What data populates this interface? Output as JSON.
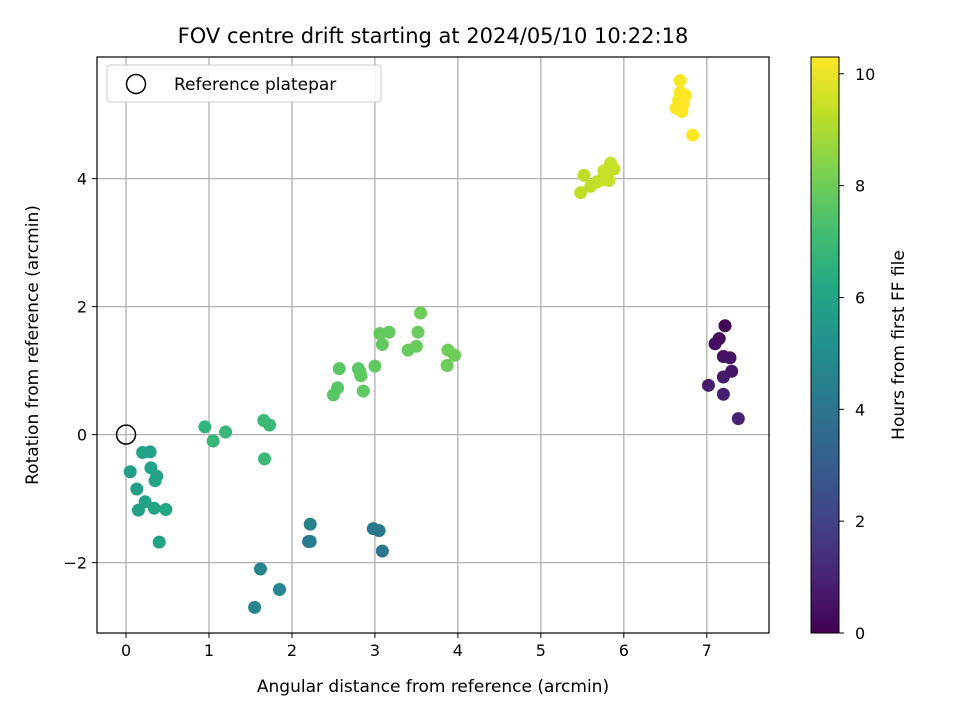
{
  "chart_data": {
    "type": "scatter",
    "title": "FOV centre drift starting at 2024/05/10 10:22:18",
    "xlabel": "Angular distance from reference (arcmin)",
    "ylabel": "Rotation from reference (arcmin)",
    "xlim": [
      -0.35,
      7.75
    ],
    "ylim": [
      -3.1,
      5.9
    ],
    "xticks": [
      0,
      1,
      2,
      3,
      4,
      5,
      6,
      7
    ],
    "yticks": [
      -2,
      0,
      2,
      4
    ],
    "ytick_labels": [
      "−2",
      "0",
      "2",
      "4"
    ],
    "grid": true,
    "legend": {
      "position": "top-left",
      "entries": [
        {
          "label": "Reference platepar",
          "marker": "open-circle",
          "color": "#000000"
        }
      ]
    },
    "reference_point": {
      "x": 0,
      "y": 0
    },
    "colorbar": {
      "label": "Hours from first FF file",
      "colormap": "viridis",
      "range": [
        0,
        10.3
      ],
      "ticks": [
        0,
        2,
        4,
        6,
        8,
        10
      ]
    },
    "points": [
      {
        "x": 7.22,
        "y": 1.7,
        "h": 0.1
      },
      {
        "x": 7.15,
        "y": 1.5,
        "h": 0.2
      },
      {
        "x": 7.1,
        "y": 1.42,
        "h": 0.3
      },
      {
        "x": 7.2,
        "y": 1.22,
        "h": 0.4
      },
      {
        "x": 7.28,
        "y": 1.2,
        "h": 0.5
      },
      {
        "x": 7.3,
        "y": 0.99,
        "h": 0.6
      },
      {
        "x": 7.2,
        "y": 0.9,
        "h": 0.7
      },
      {
        "x": 7.02,
        "y": 0.77,
        "h": 0.8
      },
      {
        "x": 7.2,
        "y": 0.63,
        "h": 0.9
      },
      {
        "x": 7.38,
        "y": 0.25,
        "h": 1.0
      },
      {
        "x": 1.55,
        "y": -2.7,
        "h": 4.6
      },
      {
        "x": 1.62,
        "y": -2.1,
        "h": 4.6
      },
      {
        "x": 1.85,
        "y": -2.42,
        "h": 4.7
      },
      {
        "x": 2.22,
        "y": -1.67,
        "h": 4.4
      },
      {
        "x": 2.2,
        "y": -1.67,
        "h": 4.3
      },
      {
        "x": 2.22,
        "y": -1.4,
        "h": 4.5
      },
      {
        "x": 2.98,
        "y": -1.47,
        "h": 4.2
      },
      {
        "x": 3.05,
        "y": -1.5,
        "h": 4.1
      },
      {
        "x": 3.09,
        "y": -1.82,
        "h": 4.0
      },
      {
        "x": 0.05,
        "y": -0.58,
        "h": 5.8
      },
      {
        "x": 0.13,
        "y": -0.85,
        "h": 5.8
      },
      {
        "x": 0.15,
        "y": -1.18,
        "h": 5.8
      },
      {
        "x": 0.2,
        "y": -0.28,
        "h": 5.9
      },
      {
        "x": 0.23,
        "y": -1.05,
        "h": 5.9
      },
      {
        "x": 0.29,
        "y": -0.27,
        "h": 5.9
      },
      {
        "x": 0.3,
        "y": -0.52,
        "h": 5.9
      },
      {
        "x": 0.35,
        "y": -0.72,
        "h": 6.0
      },
      {
        "x": 0.37,
        "y": -0.65,
        "h": 6.0
      },
      {
        "x": 0.34,
        "y": -1.15,
        "h": 6.0
      },
      {
        "x": 0.4,
        "y": -1.68,
        "h": 6.0
      },
      {
        "x": 0.48,
        "y": -1.17,
        "h": 6.1
      },
      {
        "x": 0.95,
        "y": 0.12,
        "h": 6.7
      },
      {
        "x": 1.05,
        "y": -0.1,
        "h": 6.8
      },
      {
        "x": 1.2,
        "y": 0.04,
        "h": 6.8
      },
      {
        "x": 1.66,
        "y": 0.22,
        "h": 6.9
      },
      {
        "x": 1.73,
        "y": 0.15,
        "h": 6.9
      },
      {
        "x": 1.67,
        "y": -0.38,
        "h": 6.9
      },
      {
        "x": 2.5,
        "y": 0.62,
        "h": 7.6
      },
      {
        "x": 2.55,
        "y": 0.73,
        "h": 7.6
      },
      {
        "x": 2.57,
        "y": 1.03,
        "h": 7.6
      },
      {
        "x": 2.8,
        "y": 1.03,
        "h": 7.6
      },
      {
        "x": 2.82,
        "y": 0.98,
        "h": 7.6
      },
      {
        "x": 2.83,
        "y": 0.92,
        "h": 7.7
      },
      {
        "x": 2.86,
        "y": 0.68,
        "h": 7.7
      },
      {
        "x": 3.0,
        "y": 1.07,
        "h": 7.7
      },
      {
        "x": 3.06,
        "y": 1.58,
        "h": 7.8
      },
      {
        "x": 3.09,
        "y": 1.41,
        "h": 7.8
      },
      {
        "x": 3.17,
        "y": 1.6,
        "h": 7.8
      },
      {
        "x": 3.4,
        "y": 1.32,
        "h": 7.9
      },
      {
        "x": 3.5,
        "y": 1.38,
        "h": 7.9
      },
      {
        "x": 3.52,
        "y": 1.6,
        "h": 7.9
      },
      {
        "x": 3.55,
        "y": 1.9,
        "h": 8.0
      },
      {
        "x": 3.87,
        "y": 1.08,
        "h": 8.0
      },
      {
        "x": 3.88,
        "y": 1.32,
        "h": 8.0
      },
      {
        "x": 3.96,
        "y": 1.24,
        "h": 8.0
      },
      {
        "x": 5.48,
        "y": 3.78,
        "h": 9.3
      },
      {
        "x": 5.52,
        "y": 4.05,
        "h": 9.3
      },
      {
        "x": 5.6,
        "y": 3.88,
        "h": 9.3
      },
      {
        "x": 5.68,
        "y": 3.95,
        "h": 9.3
      },
      {
        "x": 5.73,
        "y": 3.98,
        "h": 9.4
      },
      {
        "x": 5.76,
        "y": 4.12,
        "h": 9.4
      },
      {
        "x": 5.82,
        "y": 3.97,
        "h": 9.4
      },
      {
        "x": 5.84,
        "y": 4.24,
        "h": 9.4
      },
      {
        "x": 5.88,
        "y": 4.15,
        "h": 9.4
      },
      {
        "x": 6.63,
        "y": 5.1,
        "h": 10.2
      },
      {
        "x": 6.66,
        "y": 5.22,
        "h": 10.2
      },
      {
        "x": 6.68,
        "y": 5.53,
        "h": 10.2
      },
      {
        "x": 6.68,
        "y": 5.35,
        "h": 10.2
      },
      {
        "x": 6.7,
        "y": 5.05,
        "h": 10.3
      },
      {
        "x": 6.72,
        "y": 5.17,
        "h": 10.3
      },
      {
        "x": 6.74,
        "y": 5.3,
        "h": 10.3
      },
      {
        "x": 6.83,
        "y": 4.68,
        "h": 10.3
      }
    ]
  }
}
